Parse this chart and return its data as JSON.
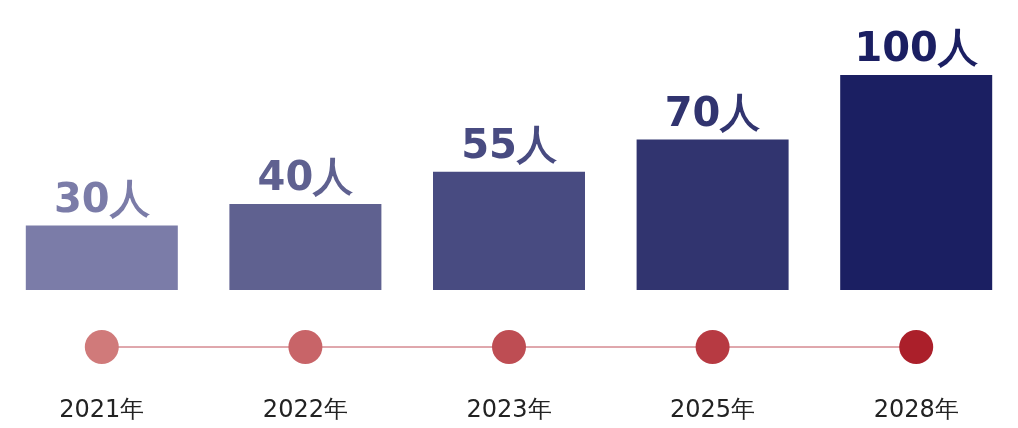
{
  "chart_data": {
    "type": "bar",
    "categories": [
      "2021年",
      "2022年",
      "2023年",
      "2025年",
      "2028年"
    ],
    "values": [
      30,
      40,
      55,
      70,
      100
    ],
    "colors": [
      "#7b7ca8",
      "#5f6190",
      "#484b81",
      "#31346f",
      "#1b1f62"
    ],
    "value_labels": [
      "30人",
      "40人",
      "55人",
      "70人",
      "100人"
    ]
  }
}
